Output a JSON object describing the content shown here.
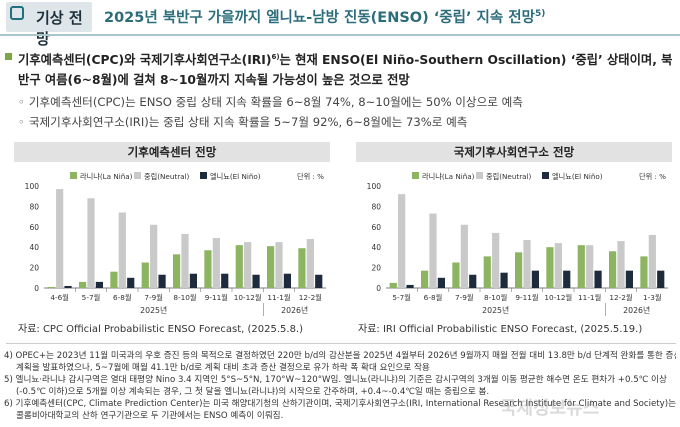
{
  "header": {
    "section_label": "기상 전망",
    "title": "2025년 북반구 가을까지 엘니뇨-남방 진동(ENSO) ‘중립’ 지속 전망",
    "title_sup": "5)"
  },
  "bullets": {
    "main": "기후예측센터(CPC)와 국제기후사회연구소(IRI)",
    "main_sup": "6)",
    "main_rest": "는 현재 ENSO(El Niño-Southern Oscillation) ‘중립’ 상태이며, 북반구 여름(6~8월)에 걸쳐 8~10월까지 지속될 가능성이 높은 것으로 전망",
    "sub1": "기후예측센터(CPC)는 ENSO 중립 상태 지속 확률을 6~8월 74%, 8~10월에는 50% 이상으로 예측",
    "sub2": "국제기후사회연구소(IRI)는 중립 상태 지속 확률을 5~7월 92%, 6~8월에는 73%로 예측"
  },
  "legend": {
    "la_nina": "라니냐(La Niña)",
    "neutral": "중립(Neutral)",
    "el_nino": "엘니뇨(El Niño)",
    "unit": "단위 : %"
  },
  "colors": {
    "la_nina": "#8db460",
    "neutral": "#c9c9c9",
    "el_nino": "#1e2b3c",
    "panel_title_bg": "#e2e2e2",
    "accent": "#2c6d7c"
  },
  "chart_data": [
    {
      "type": "bar",
      "title": "기후예측센터 전망",
      "categories": [
        "4-6월",
        "5-7월",
        "6-8월",
        "7-9월",
        "8-10월",
        "9-11월",
        "10-12월",
        "11-1월",
        "12-2월"
      ],
      "year_labels": [
        {
          "label": "2025년"
        },
        {
          "label": "2026년"
        }
      ],
      "series": [
        {
          "name": "라니냐(La Niña)",
          "values": [
            1,
            6,
            16,
            25,
            33,
            37,
            42,
            41,
            39
          ]
        },
        {
          "name": "중립(Neutral)",
          "values": [
            97,
            88,
            74,
            62,
            53,
            49,
            45,
            45,
            48
          ]
        },
        {
          "name": "엘니뇨(El Niño)",
          "values": [
            2,
            6,
            10,
            13,
            14,
            14,
            13,
            14,
            13
          ]
        }
      ],
      "yticks": [
        0,
        20,
        40,
        60,
        80,
        100
      ],
      "ylim": [
        0,
        100
      ],
      "source": "자료: CPC Official Probabilistic ENSO Forecast, (2025.5.8.)"
    },
    {
      "type": "bar",
      "title": "국제기후사회연구소 전망",
      "categories": [
        "5-7월",
        "6-8월",
        "7-9월",
        "8-10월",
        "9-11월",
        "10-12월",
        "11-1월",
        "12-2월",
        "1-3월"
      ],
      "year_labels": [
        {
          "label": "2025년"
        },
        {
          "label": "2026년"
        }
      ],
      "series": [
        {
          "name": "라니냐(La Niña)",
          "values": [
            5,
            17,
            25,
            31,
            35,
            40,
            42,
            36,
            31
          ]
        },
        {
          "name": "중립(Neutral)",
          "values": [
            92,
            73,
            62,
            54,
            47,
            44,
            42,
            46,
            52
          ]
        },
        {
          "name": "엘니뇨(El Niño)",
          "values": [
            3,
            10,
            13,
            15,
            17,
            17,
            17,
            17,
            17
          ]
        }
      ],
      "yticks": [
        0,
        20,
        40,
        60,
        80,
        100
      ],
      "ylim": [
        0,
        100
      ],
      "source": "자료: IRI Official Probabilistic ENSO Forecast, (2025.5.19.)"
    }
  ],
  "footnotes": [
    "4) OPEC+는 2023년 11월 미국과의 우호 증진 등의 목적으로 결정하였던 220만 b/d의 감산분을 2025년 4월부터 2026년 9월까지 매월 전월 대비 13.8만 b/d 단계적 완화를 통한 증산",
    "계획을 발표하였으나, 5~7월에 매월 41.1만 b/d로 계획 대비 초과 증산 결정으로 유가 하락 폭 확대 요인으로 작용",
    "5) 엘니뇨·라니냐 감시구역은 열대 태평양 Nino 3.4 지역인 5°S~5°N, 170°W~120°W임. 엘니뇨(라니냐)의 기준은 감시구역의 3개월 이동 평균한 해수면 온도 편차가 +0.5℃ 이상",
    "(-0.5℃ 이하)으로 5개월 이상 계속되는 경우, 그 첫 달을 엘니뇨(라니냐)의 시작으로 간주하며, +0.4~-0.4℃일 때는 중립으로 봄.",
    "6) 기후예측센터(CPC, Climate Prediction Center)는 미국 해양대기청의 산하기관이며, 국제기후사회연구소(IRI, International Research Institute for Climate and Society)는 미국",
    "콜롬비아대학교의 산하 연구기관으로 두 기관에서는 ENSO 예측이 이뤄짐."
  ],
  "watermark": "국제정보뉴스"
}
